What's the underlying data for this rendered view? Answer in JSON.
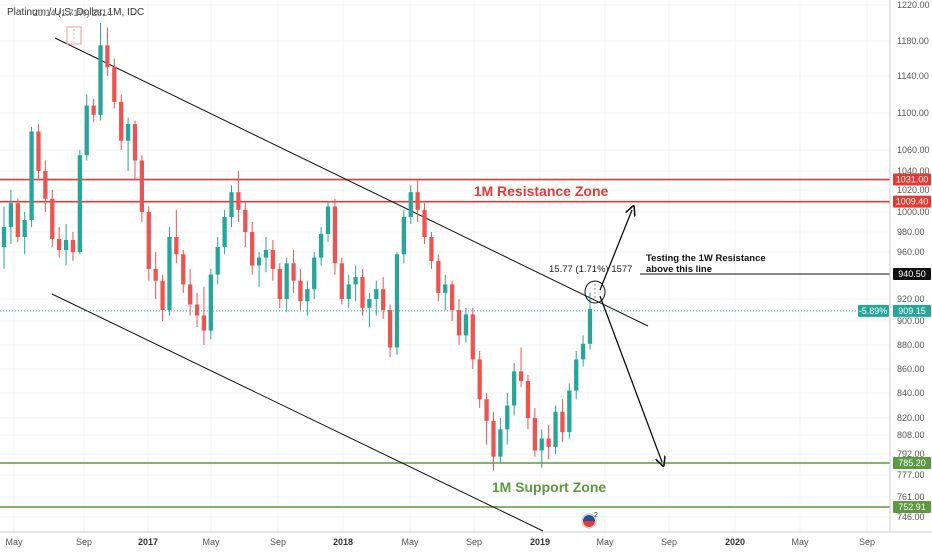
{
  "header": {
    "symbol_text": "Platinum / U.S. Dollar, 1M, IDC",
    "ohlc_text": "20.14 (1.71%) 2614"
  },
  "chart_data": {
    "type": "candlestick",
    "title": "Platinum / U.S. Dollar, 1M, IDC",
    "y_axis": {
      "position": "right",
      "ticks": [
        1220.0,
        1180.0,
        1140.0,
        1100.0,
        1060.0,
        1040.0,
        1020.0,
        1000.0,
        980.0,
        960.0,
        920.0,
        900.0,
        880.0,
        860.0,
        840.0,
        820.0,
        808.0,
        792.0,
        777.0,
        761.0,
        746.0
      ]
    },
    "x_axis": {
      "ticks": [
        {
          "label": "May",
          "bold": false
        },
        {
          "label": "Sep",
          "bold": false
        },
        {
          "label": "2017",
          "bold": true
        },
        {
          "label": "May",
          "bold": false
        },
        {
          "label": "Sep",
          "bold": false
        },
        {
          "label": "2018",
          "bold": true
        },
        {
          "label": "May",
          "bold": false
        },
        {
          "label": "Sep",
          "bold": false
        },
        {
          "label": "2019",
          "bold": true
        },
        {
          "label": "May",
          "bold": false
        },
        {
          "label": "Sep",
          "bold": false
        },
        {
          "label": "2020",
          "bold": true
        },
        {
          "label": "May",
          "bold": false
        },
        {
          "label": "Sep",
          "bold": false
        }
      ]
    },
    "price_levels": [
      {
        "value": 1031.0,
        "label": "1031.00",
        "color": "#e53935"
      },
      {
        "value": 1009.4,
        "label": "1009.40",
        "color": "#e53935"
      },
      {
        "value": 940.5,
        "label": "940.50",
        "color": "#111111"
      },
      {
        "value": 785.2,
        "label": "785.20",
        "color": "#5b9a3e"
      },
      {
        "value": 752.91,
        "label": "752.91",
        "color": "#5b9a3e"
      }
    ],
    "current_price": {
      "value": 909.15,
      "label": "909.15",
      "change_label": "-5.89%",
      "color": "#26a69a"
    },
    "annotations": {
      "resistance_zone": "1M Resistance Zone",
      "support_zone": "1M Support Zone",
      "testing_line1": "Testing the 1W Resistance",
      "testing_line2": "above this line",
      "measure_label": "15.77 (1.71%) 1577"
    },
    "series_colors": {
      "up": "#26a69a",
      "down": "#ef5350",
      "trendline": "#111111",
      "resistance": "#e53935",
      "support": "#5b9a3e"
    },
    "candles": [
      [
        965,
        1005,
        945,
        985
      ],
      [
        985,
        1020,
        968,
        1008
      ],
      [
        1008,
        1012,
        970,
        975
      ],
      [
        975,
        1000,
        958,
        992
      ],
      [
        992,
        1085,
        985,
        1080
      ],
      [
        1080,
        1088,
        1030,
        1040
      ],
      [
        1040,
        1050,
        1000,
        1012
      ],
      [
        1012,
        1020,
        965,
        973
      ],
      [
        973,
        985,
        955,
        962
      ],
      [
        962,
        988,
        948,
        972
      ],
      [
        972,
        980,
        952,
        960
      ],
      [
        960,
        1060,
        958,
        1055
      ],
      [
        1055,
        1120,
        1050,
        1108
      ],
      [
        1108,
        1115,
        1090,
        1098
      ],
      [
        1098,
        1200,
        1092,
        1175
      ],
      [
        1175,
        1195,
        1140,
        1150
      ],
      [
        1150,
        1160,
        1105,
        1112
      ],
      [
        1112,
        1120,
        1060,
        1070
      ],
      [
        1070,
        1095,
        1040,
        1088
      ],
      [
        1088,
        1092,
        1030,
        1050
      ],
      [
        1050,
        1055,
        990,
        1000
      ],
      [
        1000,
        1005,
        935,
        945
      ],
      [
        945,
        960,
        920,
        935
      ],
      [
        935,
        940,
        900,
        910
      ],
      [
        910,
        985,
        905,
        975
      ],
      [
        975,
        1002,
        950,
        958
      ],
      [
        958,
        962,
        925,
        932
      ],
      [
        932,
        945,
        905,
        915
      ],
      [
        915,
        925,
        895,
        905
      ],
      [
        905,
        930,
        880,
        892
      ],
      [
        892,
        945,
        885,
        940
      ],
      [
        940,
        975,
        932,
        965
      ],
      [
        965,
        1002,
        958,
        995
      ],
      [
        995,
        1025,
        985,
        1018
      ],
      [
        1018,
        1040,
        990,
        1002
      ],
      [
        1002,
        1010,
        965,
        980
      ],
      [
        980,
        990,
        940,
        948
      ],
      [
        948,
        960,
        930,
        955
      ],
      [
        955,
        975,
        942,
        962
      ],
      [
        962,
        972,
        935,
        945
      ],
      [
        945,
        950,
        912,
        920
      ],
      [
        920,
        955,
        908,
        950
      ],
      [
        950,
        962,
        925,
        935
      ],
      [
        935,
        945,
        910,
        918
      ],
      [
        918,
        935,
        905,
        928
      ],
      [
        928,
        960,
        920,
        955
      ],
      [
        955,
        985,
        948,
        978
      ],
      [
        978,
        1010,
        970,
        1005
      ],
      [
        1005,
        1012,
        940,
        950
      ],
      [
        950,
        955,
        915,
        920
      ],
      [
        920,
        940,
        912,
        932
      ],
      [
        932,
        948,
        918,
        938
      ],
      [
        938,
        945,
        905,
        912
      ],
      [
        912,
        925,
        895,
        920
      ],
      [
        920,
        935,
        905,
        928
      ],
      [
        928,
        938,
        902,
        910
      ],
      [
        910,
        915,
        870,
        878
      ],
      [
        878,
        960,
        872,
        958
      ],
      [
        958,
        1002,
        950,
        995
      ],
      [
        995,
        1025,
        988,
        1018
      ],
      [
        1018,
        1030,
        990,
        1002
      ],
      [
        1002,
        1008,
        968,
        975
      ],
      [
        975,
        980,
        945,
        952
      ],
      [
        952,
        958,
        918,
        925
      ],
      [
        925,
        940,
        910,
        932
      ],
      [
        932,
        935,
        900,
        910
      ],
      [
        910,
        920,
        880,
        888
      ],
      [
        888,
        912,
        882,
        906
      ],
      [
        906,
        912,
        860,
        868
      ],
      [
        868,
        875,
        828,
        835
      ],
      [
        835,
        840,
        800,
        818
      ],
      [
        818,
        825,
        780,
        790
      ],
      [
        790,
        820,
        785,
        812
      ],
      [
        812,
        840,
        800,
        830
      ],
      [
        830,
        865,
        822,
        858
      ],
      [
        858,
        878,
        845,
        850
      ],
      [
        850,
        855,
        812,
        820
      ],
      [
        820,
        828,
        790,
        795
      ],
      [
        795,
        812,
        782,
        805
      ],
      [
        805,
        815,
        788,
        798
      ],
      [
        798,
        830,
        792,
        825
      ],
      [
        825,
        835,
        802,
        810
      ],
      [
        810,
        848,
        805,
        842
      ],
      [
        842,
        875,
        835,
        868
      ],
      [
        868,
        888,
        862,
        881
      ],
      [
        881,
        925,
        876,
        911
      ]
    ]
  }
}
